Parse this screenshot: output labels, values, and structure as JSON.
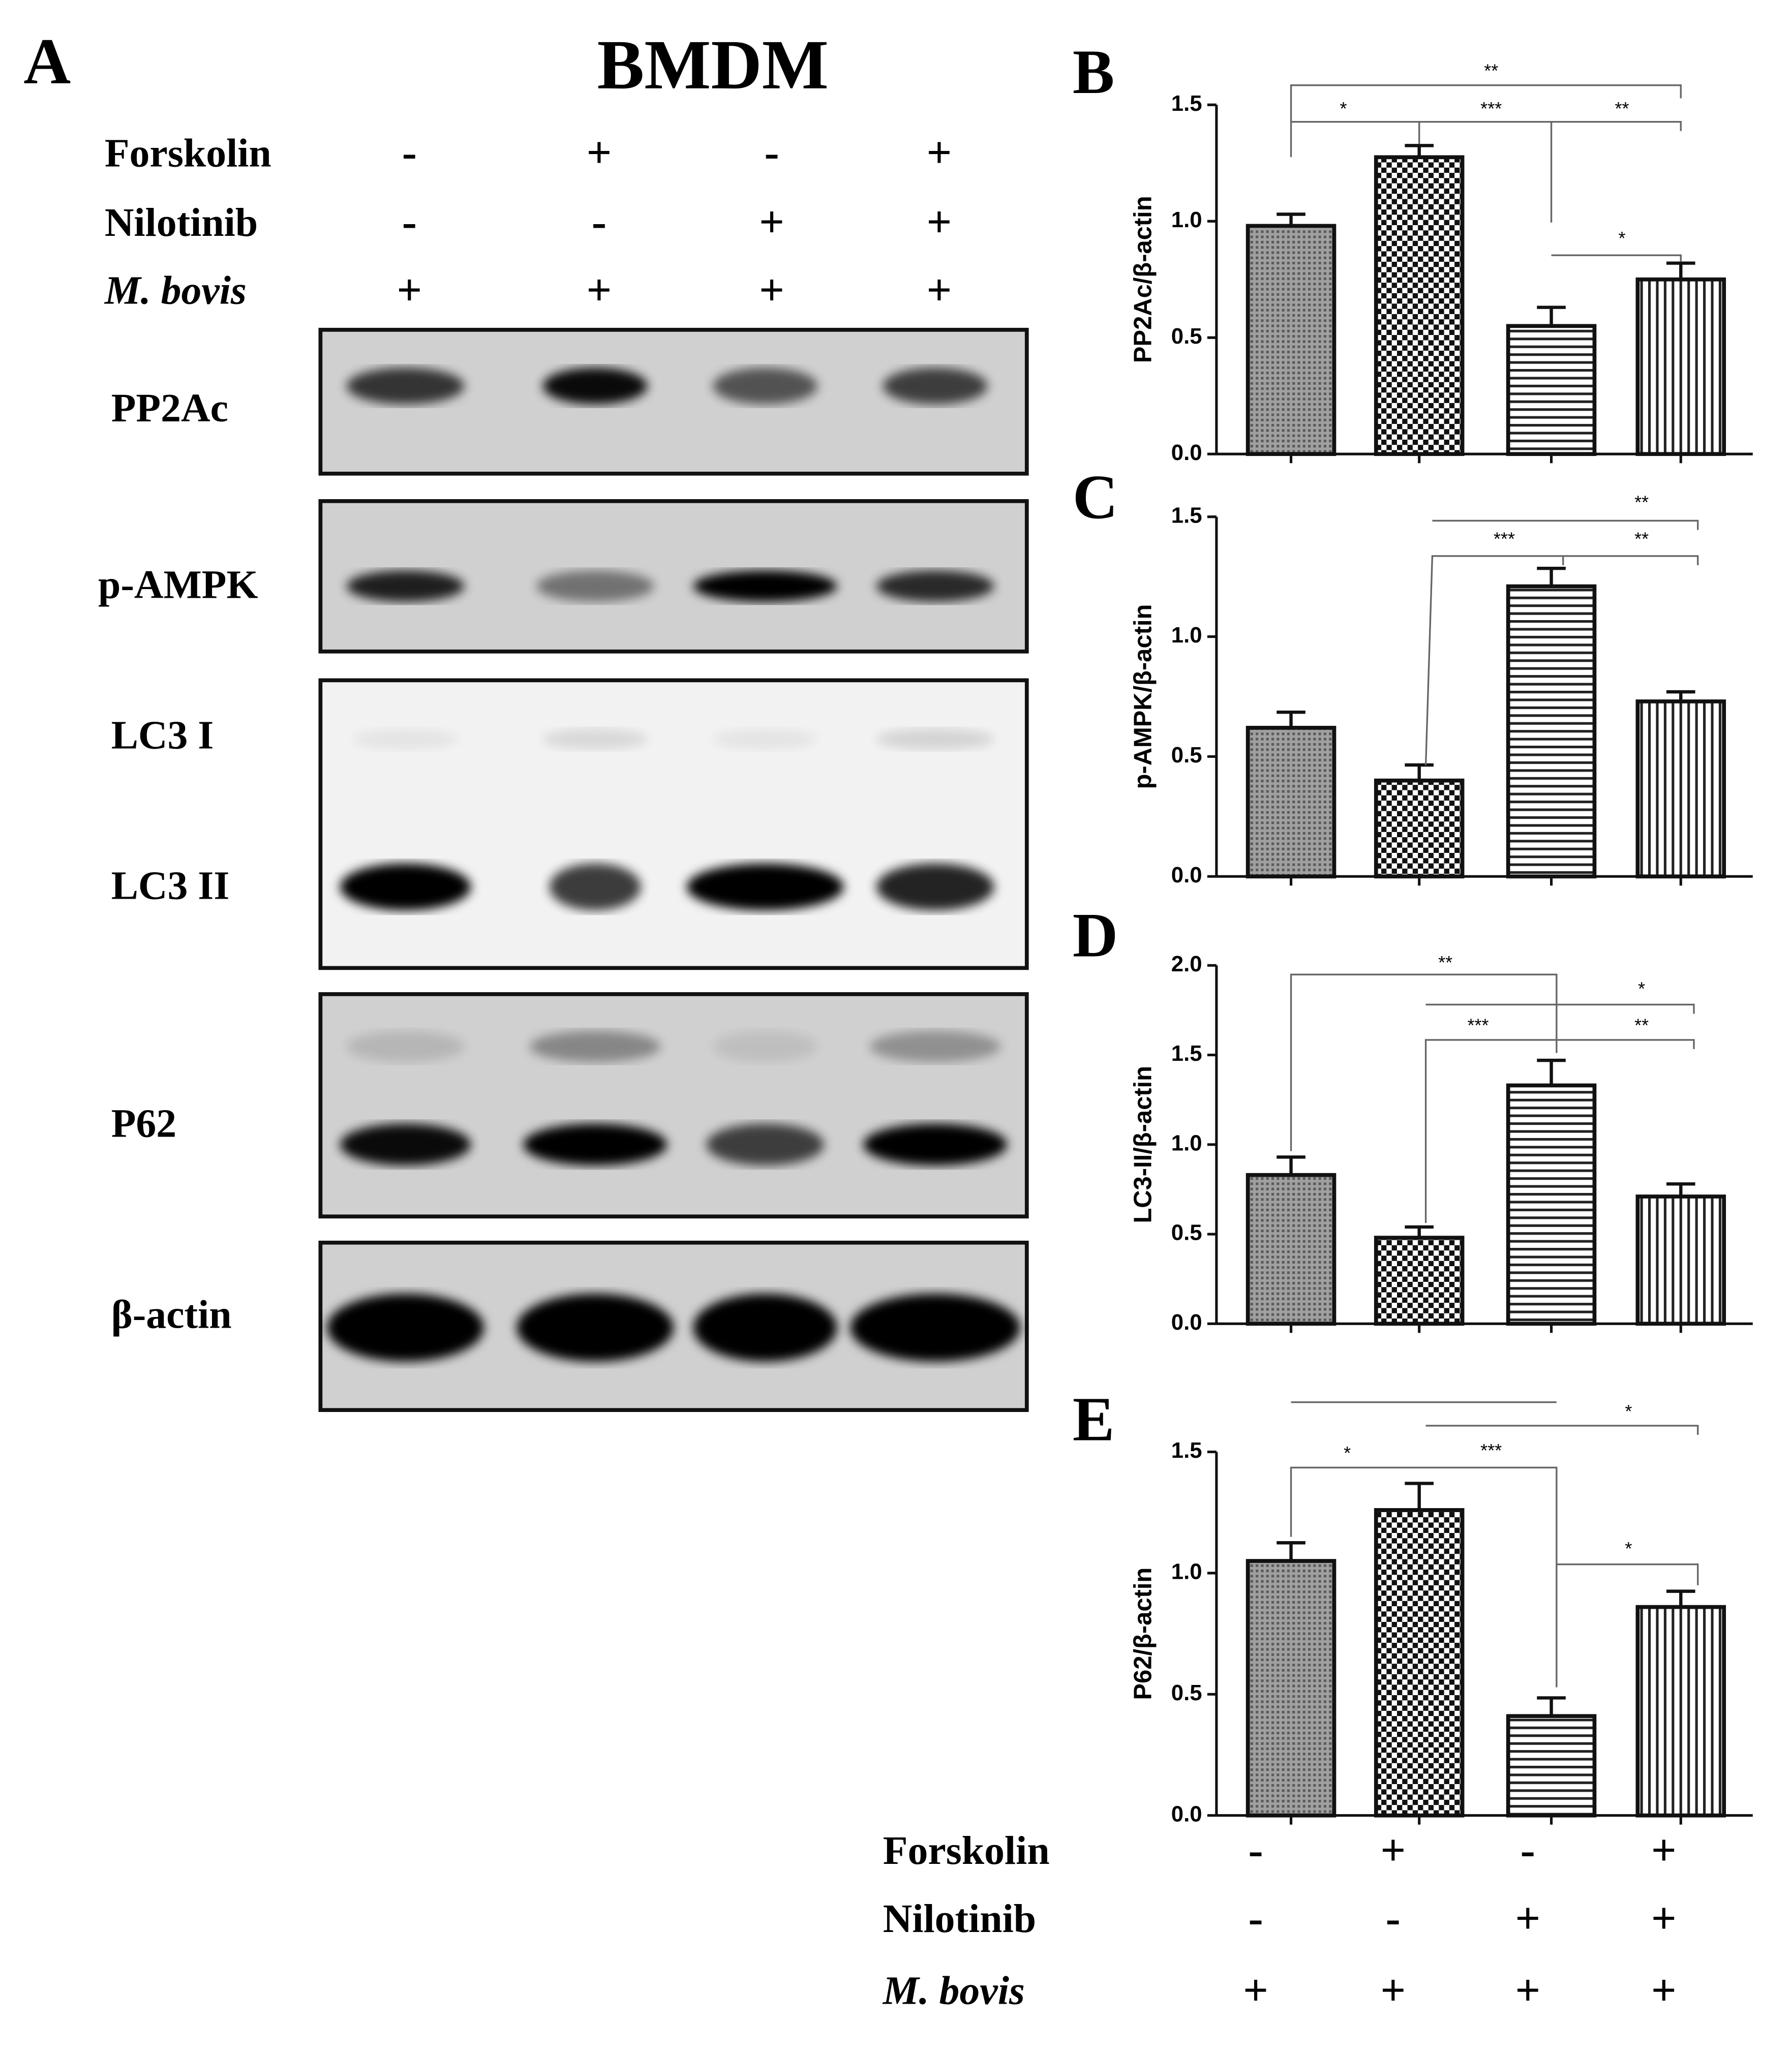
{
  "panel_a": {
    "letter": "A",
    "title": "BMDM",
    "treatments": [
      {
        "label": "Forskolin",
        "signs": [
          "-",
          "+",
          "-",
          "+"
        ]
      },
      {
        "label": "Nilotinib",
        "signs": [
          "-",
          "-",
          "+",
          "+"
        ]
      },
      {
        "label": "M. bovis",
        "signs": [
          "+",
          "+",
          "+",
          "+"
        ]
      }
    ],
    "blots": [
      "PP2Ac",
      "p-AMPK",
      "LC3 I",
      "LC3 II",
      "P62",
      "β-actin"
    ]
  },
  "chart_data": [
    {
      "type": "bar",
      "letter": "B",
      "y_label": "PP2Ac/β-actin",
      "categories": [
        null,
        null,
        null,
        null
      ],
      "values": [
        0.98,
        1.275,
        0.55,
        0.75
      ],
      "errors": [
        0.05,
        0.05,
        0.08,
        0.07
      ],
      "ylim": [
        0,
        1.5
      ],
      "yticks": [
        {
          "value": 0,
          "label": "0.0"
        },
        0.5,
        {
          "value": 1,
          "label": "1.0"
        },
        1.5
      ],
      "annotations": [
        "**",
        "*",
        "***",
        "**",
        "*"
      ]
    },
    {
      "type": "bar",
      "letter": "C",
      "y_label": "p-AMPK/β-actin",
      "categories": [
        null,
        null,
        null,
        null
      ],
      "values": [
        0.62,
        0.4,
        1.21,
        0.73
      ],
      "errors": [
        0.065,
        0.065,
        0.075,
        0.04
      ],
      "ylim": [
        0,
        1.5
      ],
      "yticks": [
        {
          "value": 0,
          "label": "0.0"
        },
        0.5,
        {
          "value": 1,
          "label": "1.0"
        },
        1.5
      ],
      "annotations": [
        "**",
        "***",
        "**"
      ]
    },
    {
      "type": "bar",
      "letter": "D",
      "y_label": "LC3-II/β-actin",
      "categories": [
        null,
        null,
        null,
        null
      ],
      "values": [
        0.83,
        0.48,
        1.33,
        0.71
      ],
      "errors": [
        0.1,
        0.06,
        0.14,
        0.07
      ],
      "ylim": [
        0,
        2
      ],
      "yticks": [
        {
          "value": 0,
          "label": "0.0"
        },
        0.5,
        {
          "value": 1,
          "label": "1.0"
        },
        1.5,
        {
          "value": 2,
          "label": "2.0"
        }
      ],
      "annotations": [
        "**",
        "*",
        "***",
        "**"
      ]
    },
    {
      "type": "bar",
      "letter": "E",
      "y_label": "P62/β-actin",
      "categories": [
        null,
        null,
        null,
        null
      ],
      "values": [
        1.05,
        1.26,
        0.41,
        0.86
      ],
      "errors": [
        0.075,
        0.11,
        0.075,
        0.065
      ],
      "ylim": [
        0,
        1.5
      ],
      "yticks": [
        {
          "value": 0,
          "label": "0.0"
        },
        0.5,
        {
          "value": 1,
          "label": "1.0"
        },
        1.5
      ],
      "annotations": [
        "*",
        "*",
        "***",
        "*"
      ]
    }
  ],
  "treatment_table": [
    {
      "label": "Forskolin",
      "signs": [
        "-",
        "+",
        "-",
        "+"
      ]
    },
    {
      "label": "Nilotinib",
      "signs": [
        "-",
        "-",
        "+",
        "+"
      ]
    },
    {
      "label": "M. bovis",
      "signs": [
        "+",
        "+",
        "+",
        "+"
      ]
    }
  ]
}
